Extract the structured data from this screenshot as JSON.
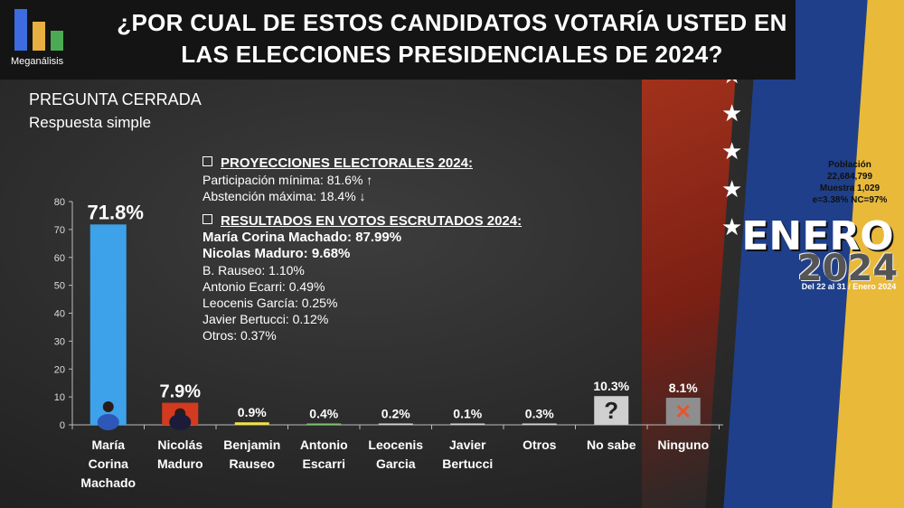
{
  "header": {
    "logo_text": "Meganálisis",
    "title_line1": "¿POR CUAL DE ESTOS CANDIDATOS VOTARÍA USTED EN",
    "title_line2": "LAS ELECCIONES PRESIDENCIALES DE 2024?"
  },
  "subtitle": {
    "line1": "PREGUNTA CERRADA",
    "line2": "Respuesta simple"
  },
  "projections": {
    "heading": "PROYECCIONES ELECTORALES 2024",
    "heading_suffix": ":",
    "participation": "Participación mínima: 81.6% ↑",
    "abstention": "Abstención máxima: 18.4% ↓"
  },
  "results": {
    "heading": "RESULTADOS EN VOTOS ESCRUTADOS 2024",
    "heading_suffix": ":",
    "lines_bold": [
      "María Corina Machado: 87.99%",
      "Nicolas Maduro: 9.68%"
    ],
    "lines": [
      "B. Rauseo: 1.10%",
      "Antonio Ecarri: 0.49%",
      "Leocenis García: 0.25%",
      "Javier Bertucci: 0.12%",
      "Otros: 0.37%"
    ]
  },
  "sample": {
    "line1": "Población",
    "line2": "22,684,799",
    "line3": "Muestra 1,029",
    "line4": "e=3.38%  NC=97%"
  },
  "badge": {
    "month": "ENERO",
    "year": "2024",
    "dates": "Del 22 al 31 / Enero 2024"
  },
  "chart_data": {
    "type": "bar",
    "ylim": [
      0,
      80
    ],
    "yticks": [
      0,
      10,
      20,
      30,
      40,
      50,
      60,
      70,
      80
    ],
    "grid": false,
    "categories": [
      [
        "María",
        "Corina",
        "Machado"
      ],
      [
        "Nicolás",
        "Maduro"
      ],
      [
        "Benjamin",
        "Rauseo"
      ],
      [
        "Antonio",
        "Escarri"
      ],
      [
        "Leocenis",
        "Garcia"
      ],
      [
        "Javier",
        "Bertucci"
      ],
      [
        "Otros"
      ],
      [
        "No sabe"
      ],
      [
        "Ninguno"
      ]
    ],
    "values": [
      71.8,
      7.9,
      0.9,
      0.4,
      0.2,
      0.1,
      0.3,
      10.3,
      8.1
    ],
    "labels": [
      "71.8%",
      "7.9%",
      "0.9%",
      "0.4%",
      "0.2%",
      "0.1%",
      "0.3%",
      "10.3%",
      "8.1%"
    ],
    "colors": [
      "#3ea2ea",
      "#d43a1f",
      "#f0e24a",
      "#7cc46c",
      "#d0d0d0",
      "#d0d0d0",
      "#d0d0d0",
      "#cfcfcf",
      "#8e8e8e"
    ],
    "icons": [
      "photo",
      "photo",
      "",
      "",
      "",
      "",
      "",
      "question-icon",
      "x-icon"
    ]
  }
}
